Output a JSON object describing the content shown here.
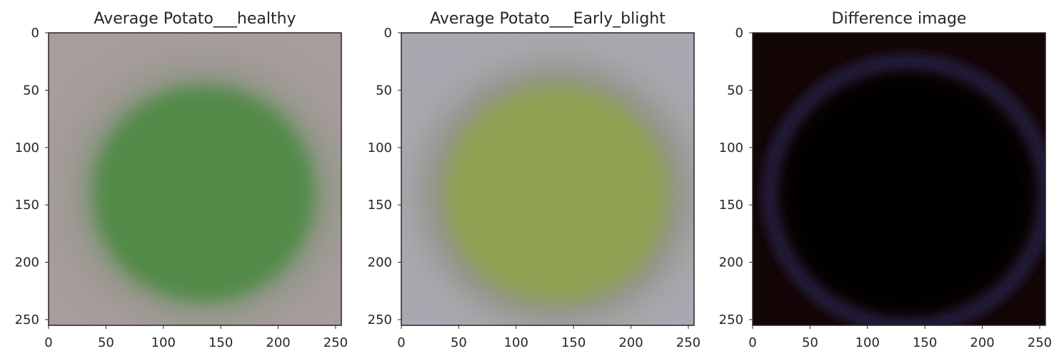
{
  "chart_data": [
    {
      "type": "image",
      "title": "Average Potato___healthy",
      "xlim": [
        0,
        255
      ],
      "ylim": [
        255,
        0
      ],
      "xticks": [
        0,
        50,
        100,
        150,
        200,
        250
      ],
      "yticks": [
        0,
        50,
        100,
        150,
        200,
        250
      ],
      "colors": {
        "background": "#a89c9d",
        "blob": "#4f8a45",
        "blob_edge": "#7f9277"
      }
    },
    {
      "type": "image",
      "title": "Average Potato___Early_blight",
      "xlim": [
        0,
        255
      ],
      "ylim": [
        255,
        0
      ],
      "xticks": [
        0,
        50,
        100,
        150,
        200,
        250
      ],
      "yticks": [
        0,
        50,
        100,
        150,
        200,
        250
      ],
      "colors": {
        "background": "#a9a8b0",
        "blob": "#8fa150",
        "blob_edge": "#7e8466"
      }
    },
    {
      "type": "image",
      "title": "Difference image",
      "xlim": [
        0,
        255
      ],
      "ylim": [
        255,
        0
      ],
      "xticks": [
        0,
        50,
        100,
        150,
        200,
        250
      ],
      "yticks": [
        0,
        50,
        100,
        150,
        200,
        250
      ],
      "colors": {
        "background": "#140607",
        "blob": "#000000",
        "blob_edge": "#221a3a"
      }
    }
  ]
}
